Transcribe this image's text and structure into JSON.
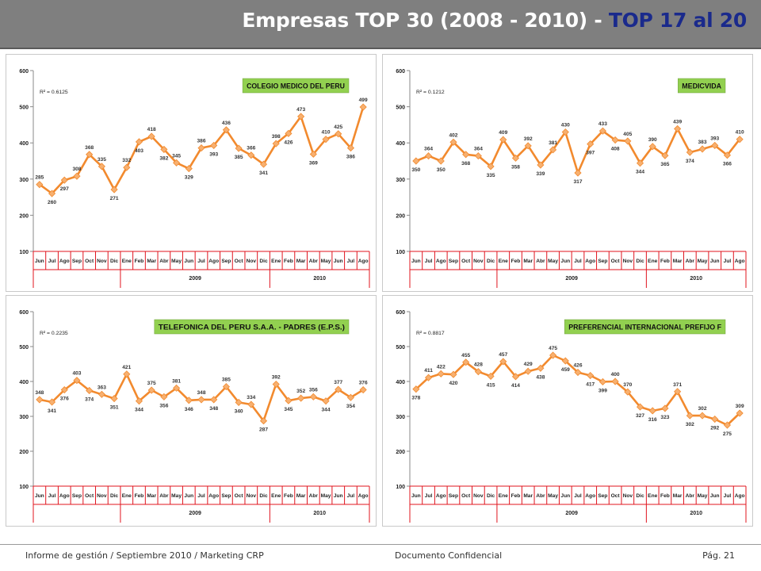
{
  "header": {
    "title_main": "Empresas TOP 30 (2008 - 2010) - ",
    "title_accent": "TOP 17 al 20"
  },
  "footer": {
    "left": "Informe de gestión / Septiembre 2010 / Marketing CRP",
    "center": "Documento Confidencial",
    "right": "Pág. 21"
  },
  "colors": {
    "series_line": "#f28a2e",
    "series_marker": "#f7b070",
    "label_background": "#92d050",
    "trendline": "#000000",
    "axis_table": "#e0141e"
  },
  "chart_data": [
    {
      "type": "line",
      "title": "COLEGIO MEDICO DEL PERU",
      "r_squared": "R² = 0.6125",
      "ylim": [
        100,
        600
      ],
      "yticks": [
        "100",
        "200",
        "300",
        "400",
        "500",
        "600"
      ],
      "categories": [
        "Jun",
        "Jul",
        "Ago",
        "Sep",
        "Oct",
        "Nov",
        "Dic",
        "Ene",
        "Feb",
        "Mar",
        "Abr",
        "May",
        "Jun",
        "Jul",
        "Ago",
        "Sep",
        "Oct",
        "Nov",
        "Dic",
        "Ene",
        "Feb",
        "Mar",
        "Abr",
        "May",
        "Jun",
        "Jul",
        "Ago"
      ],
      "year_groups": [
        {
          "label": "2009",
          "start": 7,
          "end": 18
        },
        {
          "label": "2010",
          "start": 19,
          "end": 26
        }
      ],
      "values": [
        285,
        260,
        297,
        308,
        368,
        335,
        271,
        332,
        403,
        418,
        382,
        345,
        329,
        386,
        393,
        436,
        385,
        366,
        341,
        398,
        426,
        473,
        369,
        410,
        425,
        386,
        499
      ],
      "trend": "poly3",
      "grid": false
    },
    {
      "type": "line",
      "title": "MEDICVIDA",
      "r_squared": "R² = 0.1212",
      "ylim": [
        100,
        600
      ],
      "yticks": [
        "100",
        "200",
        "300",
        "400",
        "500",
        "600"
      ],
      "categories": [
        "Jun",
        "Jul",
        "Ago",
        "Sep",
        "Oct",
        "Nov",
        "Dic",
        "Ene",
        "Feb",
        "Mar",
        "Abr",
        "May",
        "Jun",
        "Jul",
        "Ago",
        "Sep",
        "Oct",
        "Nov",
        "Dic",
        "Ene",
        "Feb",
        "Mar",
        "Abr",
        "May",
        "Jun",
        "Jul",
        "Ago"
      ],
      "year_groups": [
        {
          "label": "2009",
          "start": 7,
          "end": 18
        },
        {
          "label": "2010",
          "start": 19,
          "end": 26
        }
      ],
      "values": [
        350,
        364,
        350,
        402,
        368,
        364,
        335,
        409,
        358,
        392,
        339,
        381,
        430,
        317,
        397,
        433,
        408,
        405,
        344,
        390,
        365,
        439,
        374,
        383,
        393,
        366,
        410
      ],
      "trend": "poly3",
      "grid": false
    },
    {
      "type": "line",
      "title": "TELEFONICA DEL PERU S.A.A. - PADRES (E.P.S.)",
      "r_squared": "R² = 0.2235",
      "ylim": [
        100,
        600
      ],
      "yticks": [
        "100",
        "200",
        "300",
        "400",
        "500",
        "600"
      ],
      "categories": [
        "Jun",
        "Jul",
        "Ago",
        "Sep",
        "Oct",
        "Nov",
        "Dic",
        "Ene",
        "Feb",
        "Mar",
        "Abr",
        "May",
        "Jun",
        "Jul",
        "Ago",
        "Sep",
        "Oct",
        "Nov",
        "Dic",
        "Ene",
        "Feb",
        "Mar",
        "Abr",
        "May",
        "Jun",
        "Jul",
        "Ago"
      ],
      "year_groups": [
        {
          "label": "2009",
          "start": 7,
          "end": 18
        },
        {
          "label": "2010",
          "start": 19,
          "end": 26
        }
      ],
      "values": [
        348,
        341,
        376,
        403,
        374,
        363,
        351,
        421,
        344,
        375,
        356,
        381,
        346,
        348,
        348,
        385,
        340,
        334,
        287,
        392,
        345,
        352,
        356,
        344,
        377,
        354,
        376
      ],
      "trend": "poly3",
      "grid": false
    },
    {
      "type": "line",
      "title": "PREFERENCIAL INTERNACIONAL PREFIJO F",
      "r_squared": "R² = 0.8817",
      "ylim": [
        100,
        600
      ],
      "yticks": [
        "100",
        "200",
        "300",
        "400",
        "500",
        "600"
      ],
      "categories": [
        "Jun",
        "Jul",
        "Ago",
        "Sep",
        "Oct",
        "Nov",
        "Dic",
        "Ene",
        "Feb",
        "Mar",
        "Abr",
        "May",
        "Jun",
        "Jul",
        "Ago",
        "Sep",
        "Oct",
        "Nov",
        "Dic",
        "Ene",
        "Feb",
        "Mar",
        "Abr",
        "May",
        "Jun",
        "Jul",
        "Ago"
      ],
      "year_groups": [
        {
          "label": "2009",
          "start": 7,
          "end": 18
        },
        {
          "label": "2010",
          "start": 19,
          "end": 26
        }
      ],
      "values": [
        378,
        411,
        422,
        420,
        455,
        428,
        415,
        457,
        414,
        429,
        438,
        475,
        459,
        426,
        417,
        399,
        400,
        370,
        327,
        316,
        323,
        371,
        302,
        302,
        292,
        275,
        309
      ],
      "trend": "poly3",
      "grid": false
    }
  ]
}
